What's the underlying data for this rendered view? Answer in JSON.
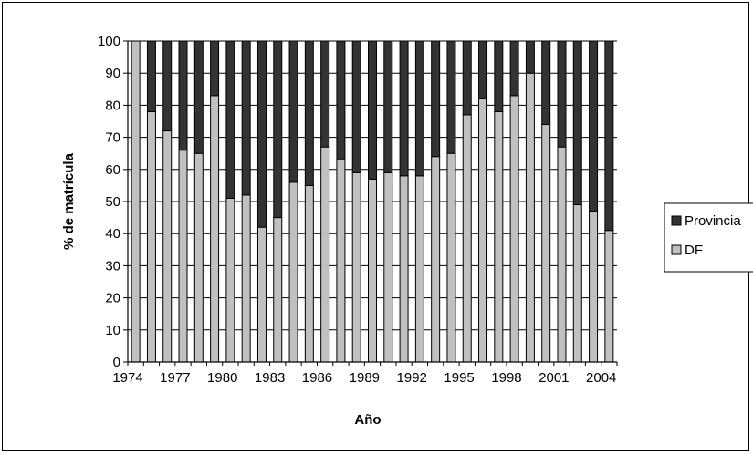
{
  "chart_data": {
    "type": "bar",
    "stacked": true,
    "percent": true,
    "title": "",
    "xlabel": "Año",
    "ylabel": "% de matrícula",
    "ylim": [
      0,
      100
    ],
    "yticks": [
      0,
      10,
      20,
      30,
      40,
      50,
      60,
      70,
      80,
      90,
      100
    ],
    "xtick_labels": [
      "1974",
      "1977",
      "1980",
      "1983",
      "1986",
      "1989",
      "1992",
      "1995",
      "1998",
      "2001",
      "2004"
    ],
    "grid": true,
    "legend_position": "right",
    "categories": [
      "1974",
      "1975",
      "1976",
      "1977",
      "1978",
      "1979",
      "1980",
      "1981",
      "1982",
      "1983",
      "1984",
      "1985",
      "1986",
      "1987",
      "1988",
      "1989",
      "1990",
      "1991",
      "1992",
      "1993",
      "1994",
      "1995",
      "1996",
      "1997",
      "1998",
      "1999",
      "2000",
      "2001",
      "2002",
      "2003",
      "2004"
    ],
    "series": [
      {
        "name": "DF",
        "color": "#c0c0c0",
        "values": [
          100,
          78,
          72,
          66,
          65,
          83,
          51,
          52,
          42,
          45,
          56,
          55,
          67,
          63,
          59,
          57,
          59,
          58,
          58,
          64,
          65,
          77,
          82,
          78,
          83,
          90,
          74,
          67,
          49,
          47,
          41
        ]
      },
      {
        "name": "Provincia",
        "color": "#333333",
        "values": [
          0,
          22,
          28,
          34,
          35,
          17,
          49,
          48,
          58,
          55,
          44,
          45,
          33,
          37,
          41,
          43,
          41,
          42,
          42,
          36,
          35,
          23,
          18,
          22,
          17,
          10,
          26,
          33,
          51,
          53,
          59
        ]
      }
    ]
  }
}
